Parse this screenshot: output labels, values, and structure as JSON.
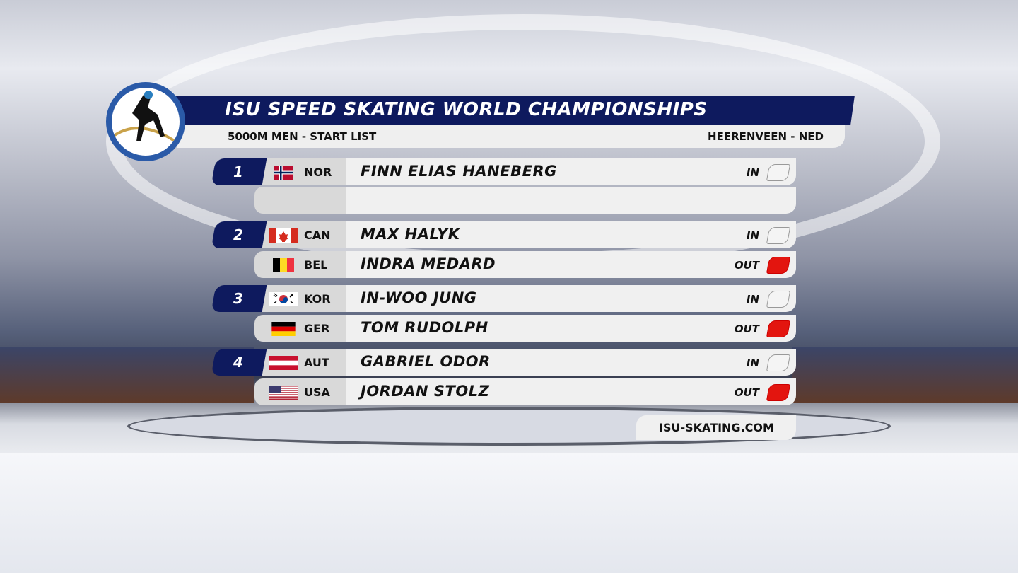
{
  "header": {
    "title": "ISU SPEED SKATING WORLD CHAMPIONSHIPS",
    "event": "5000M MEN - START LIST",
    "venue": "HEERENVEEN - NED"
  },
  "colors": {
    "navy": "#0e1a5e",
    "out": "#e3150f",
    "in": "#f4f4f4"
  },
  "pairs": [
    {
      "pair": "1",
      "skaters": [
        {
          "country": "NOR",
          "flag": "norway-flag",
          "name": "FINN ELIAS HANEBERG",
          "lane": "IN"
        },
        {
          "empty": true
        }
      ]
    },
    {
      "pair": "2",
      "skaters": [
        {
          "country": "CAN",
          "flag": "canada-flag",
          "name": "MAX HALYK",
          "lane": "IN"
        },
        {
          "country": "BEL",
          "flag": "belgium-flag",
          "name": "INDRA MEDARD",
          "lane": "OUT"
        }
      ]
    },
    {
      "pair": "3",
      "skaters": [
        {
          "country": "KOR",
          "flag": "korea-flag",
          "name": "IN-WOO JUNG",
          "lane": "IN"
        },
        {
          "country": "GER",
          "flag": "germany-flag",
          "name": "TOM RUDOLPH",
          "lane": "OUT"
        }
      ]
    },
    {
      "pair": "4",
      "skaters": [
        {
          "country": "AUT",
          "flag": "austria-flag",
          "name": "GABRIEL ODOR",
          "lane": "IN"
        },
        {
          "country": "USA",
          "flag": "usa-flag",
          "name": "JORDAN STOLZ",
          "lane": "OUT"
        }
      ]
    }
  ],
  "footer": {
    "website": "ISU-SKATING.COM"
  }
}
